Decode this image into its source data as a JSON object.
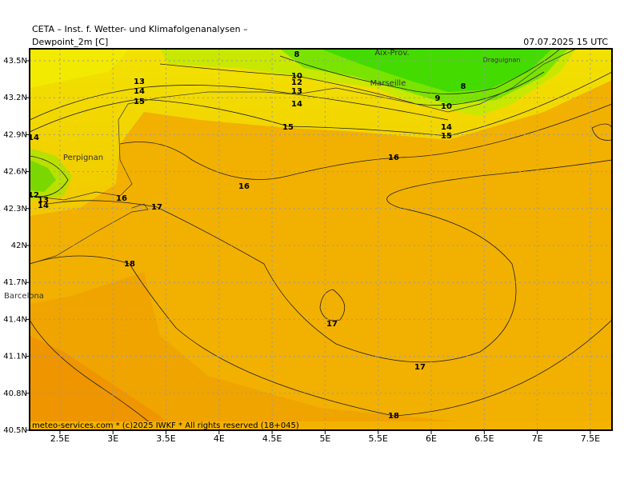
{
  "header": {
    "title": "CETA – Inst. f. Wetter- und Klimafolgenanalysen –"
  },
  "map": {
    "field_title": "Dewpoint_2m [C]",
    "timestamp": "07.07.2025 15 UTC",
    "xticks": [
      {
        "value": 2.5,
        "label": "2.5E"
      },
      {
        "value": 3,
        "label": "3E"
      },
      {
        "value": 3.5,
        "label": "3.5E"
      },
      {
        "value": 4,
        "label": "4E"
      },
      {
        "value": 4.5,
        "label": "4.5E"
      },
      {
        "value": 5,
        "label": "5E"
      },
      {
        "value": 5.5,
        "label": "5.5E"
      },
      {
        "value": 6,
        "label": "6E"
      },
      {
        "value": 6.5,
        "label": "6.5E"
      },
      {
        "value": 7,
        "label": "7E"
      },
      {
        "value": 7.5,
        "label": "7.5E"
      }
    ],
    "yticks": [
      {
        "value": 43.5,
        "label": "43.5N"
      },
      {
        "value": 43.2,
        "label": "43.2N"
      },
      {
        "value": 42.9,
        "label": "42.9N"
      },
      {
        "value": 42.6,
        "label": "42.6N"
      },
      {
        "value": 42.3,
        "label": "42.3N"
      },
      {
        "value": 42,
        "label": "42N"
      },
      {
        "value": 41.7,
        "label": "41.7N"
      },
      {
        "value": 41.4,
        "label": "41.4N"
      },
      {
        "value": 41.1,
        "label": "41.1N"
      },
      {
        "value": 40.8,
        "label": "40.8N"
      },
      {
        "value": 40.5,
        "label": "40.5N"
      }
    ],
    "places": [
      "Aix-Prov.",
      "Marseille",
      "Draguignan",
      "Perpignan",
      "Barcelona"
    ],
    "contour_labels": [
      8,
      10,
      12,
      13,
      14,
      13,
      14,
      15,
      14,
      12,
      13,
      14,
      16,
      17,
      18,
      16,
      15,
      16,
      17,
      17,
      18,
      8,
      9,
      10,
      14,
      15
    ],
    "footer": "meteo-services.com * (c)2025 IWKF * All rights reserved (18+045)"
  }
}
